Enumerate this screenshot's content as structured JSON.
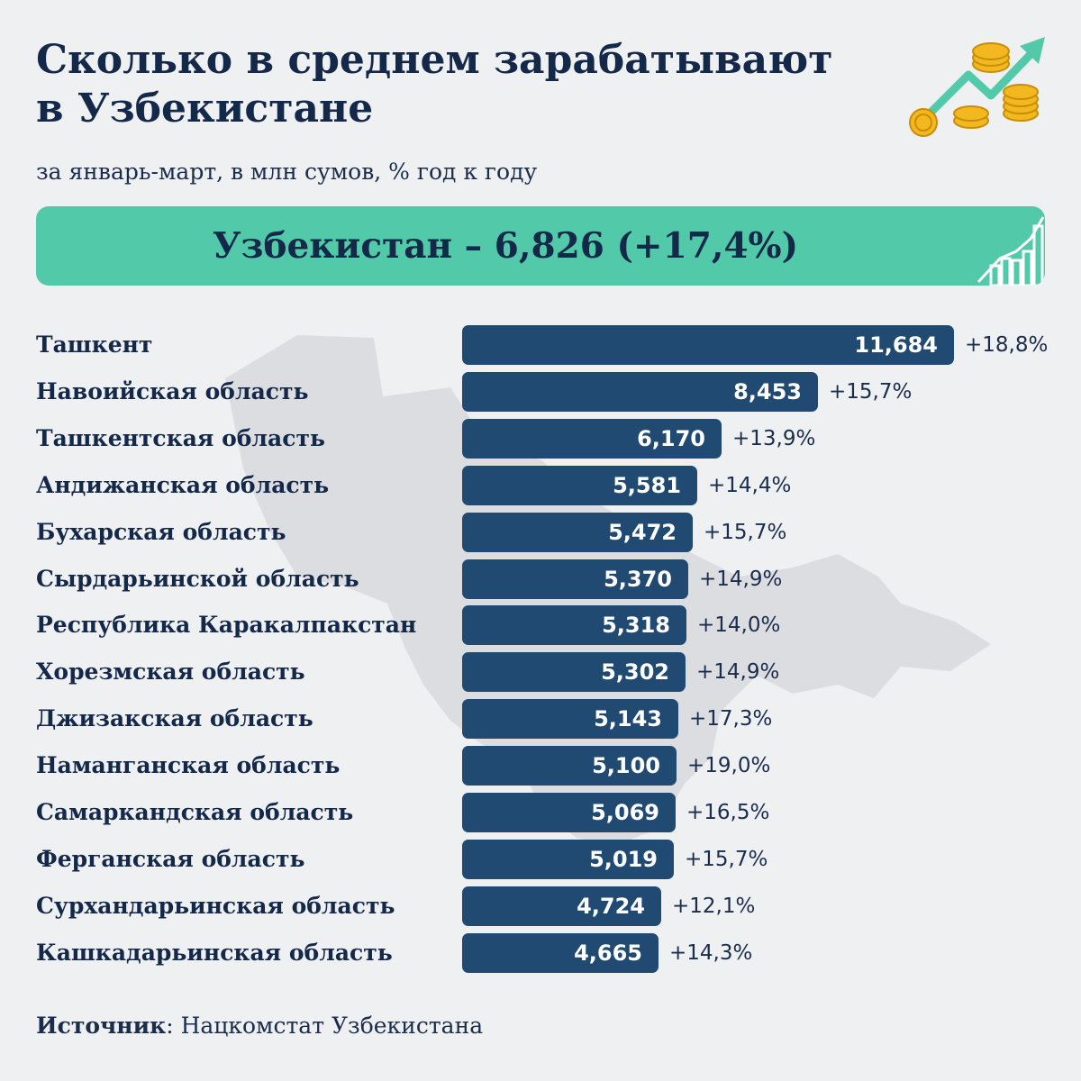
{
  "header": {
    "title_line1": "Сколько в среднем зарабатывают",
    "title_line2": "в Узбекистане",
    "subtitle": "за январь-март, в млн сумов, % год к году"
  },
  "banner": {
    "text": "Узбекистан – 6,826 (+17,4%)"
  },
  "chart_data": {
    "type": "bar",
    "orientation": "horizontal",
    "categories": [
      "Ташкент",
      "Навоийская область",
      "Ташкентская область",
      "Андижанская область",
      "Бухарская область",
      "Сырдарьинской область",
      "Республика Каракалпакстан",
      "Хорезмская область",
      "Джизакская область",
      "Наманганская область",
      "Самаркандская область",
      "Ферганская область",
      "Сурхандарьинская область",
      "Кашкадарьинская область"
    ],
    "values": [
      11.684,
      8.453,
      6.17,
      5.581,
      5.472,
      5.37,
      5.318,
      5.302,
      5.143,
      5.1,
      5.069,
      5.019,
      4.724,
      4.665
    ],
    "value_labels": [
      "11,684",
      "8,453",
      "6,170",
      "5,581",
      "5,472",
      "5,370",
      "5,318",
      "5,302",
      "5,143",
      "5,100",
      "5,069",
      "5,019",
      "4,724",
      "4,665"
    ],
    "change_labels": [
      "+18,8%",
      "+15,7%",
      "+13,9%",
      "+14,4%",
      "+15,7%",
      "+14,9%",
      "+14,0%",
      "+14,9%",
      "+17,3%",
      "+19,0%",
      "+16,5%",
      "+15,7%",
      "+12,1%",
      "+14,3%"
    ],
    "bar_color": "#214a73"
  },
  "source": {
    "label": "Источник",
    "text": ": Нацкомстат Узбекистана"
  },
  "colors": {
    "background": "#eff0f2",
    "accent": "#52c9a8",
    "text": "#14294a"
  }
}
